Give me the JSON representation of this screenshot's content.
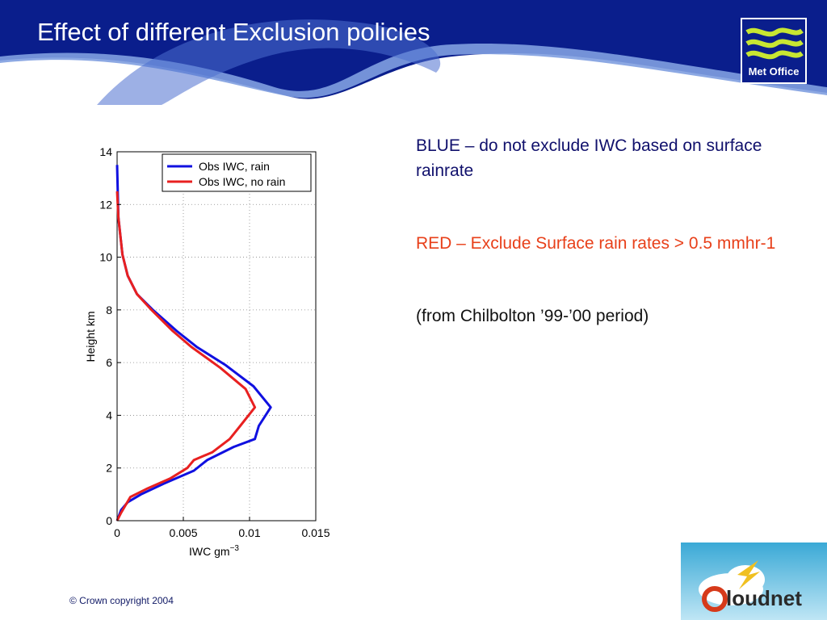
{
  "slide": {
    "title": "Effect of different Exclusion policies",
    "logo_text": "Met Office",
    "copyright": "© Crown copyright 2004",
    "cloudnet_logo_text": "Cloudnet"
  },
  "colors": {
    "banner_dark": "#0a1e8c",
    "banner_light": "#6a8fd8",
    "logo_green": "#c8e632",
    "blue_series": "#1010e0",
    "red_series": "#e82020",
    "note_blue": "#10106c",
    "note_red": "#e8401a"
  },
  "notes": [
    {
      "text": "BLUE – do not exclude IWC based on surface rainrate",
      "color": "blue"
    },
    {
      "text": "RED – Exclude Surface rain rates  > 0.5 mmhr-1",
      "color": "red"
    },
    {
      "text": "(from Chilbolton ’99-’00 period)",
      "color": "black"
    }
  ],
  "chart_data": {
    "type": "line",
    "title": "",
    "xlabel": "IWC gm",
    "xlabel_superscript": "−3",
    "ylabel": "Height km",
    "xlim": [
      0,
      0.015
    ],
    "ylim": [
      0,
      14
    ],
    "xticks": [
      "0",
      "0.005",
      "0.01",
      "0.015"
    ],
    "xtick_values": [
      0,
      0.005,
      0.01,
      0.015
    ],
    "yticks": [
      "0",
      "2",
      "4",
      "6",
      "8",
      "10",
      "12",
      "14"
    ],
    "ytick_values": [
      0,
      2,
      4,
      6,
      8,
      10,
      12,
      14
    ],
    "grid": true,
    "legend_position": "top-right",
    "series": [
      {
        "name": "Obs IWC, rain",
        "color": "#1010e0",
        "x": [
          0,
          0.0003,
          0.0008,
          0.0018,
          0.0035,
          0.0058,
          0.0068,
          0.0088,
          0.0104,
          0.0107,
          0.0116,
          0.0103,
          0.0082,
          0.006,
          0.0045,
          0.0027,
          0.0015,
          0.0008,
          0.0004,
          0.0001,
          0
        ],
        "y": [
          0,
          0.4,
          0.7,
          1.0,
          1.4,
          1.9,
          2.3,
          2.8,
          3.1,
          3.6,
          4.3,
          5.1,
          5.9,
          6.6,
          7.2,
          8.0,
          8.6,
          9.3,
          10.1,
          11.5,
          13.5
        ]
      },
      {
        "name": "Obs IWC, no rain",
        "color": "#e82020",
        "x": [
          0,
          0.0003,
          0.001,
          0.0022,
          0.004,
          0.0053,
          0.0058,
          0.0072,
          0.0085,
          0.0093,
          0.0104,
          0.0097,
          0.0078,
          0.0056,
          0.0042,
          0.0026,
          0.0015,
          0.0008,
          0.0004,
          0.0001,
          0
        ],
        "y": [
          0,
          0.3,
          0.9,
          1.2,
          1.6,
          2.0,
          2.3,
          2.6,
          3.1,
          3.6,
          4.3,
          5.0,
          5.8,
          6.6,
          7.2,
          8.0,
          8.6,
          9.3,
          10.1,
          11.5,
          12.5
        ]
      }
    ]
  }
}
